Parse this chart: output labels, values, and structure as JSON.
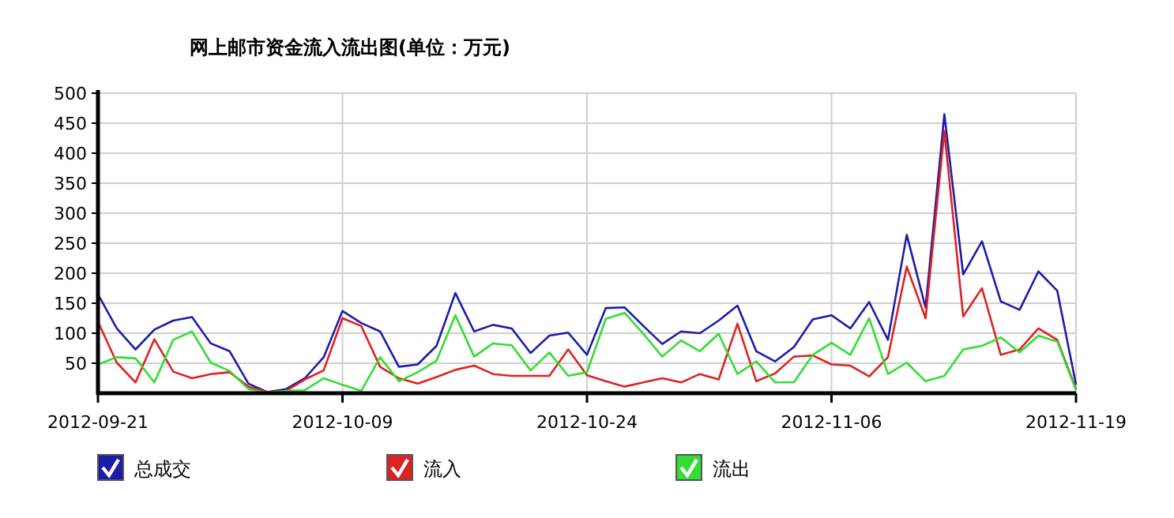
{
  "chart_data": {
    "type": "line",
    "title": "网上邮市资金流入流出图(单位：万元)",
    "categories": [
      "2012-09-21",
      null,
      null,
      null,
      null,
      null,
      null,
      null,
      null,
      null,
      null,
      null,
      null,
      "2012-10-09",
      null,
      null,
      null,
      null,
      null,
      null,
      null,
      null,
      null,
      null,
      null,
      null,
      "2012-10-24",
      null,
      null,
      null,
      null,
      null,
      null,
      null,
      null,
      null,
      null,
      null,
      null,
      "2012-11-06",
      null,
      null,
      null,
      null,
      null,
      null,
      null,
      null,
      null,
      null,
      null,
      null,
      "2012-11-19"
    ],
    "series": [
      {
        "name": "总成交",
        "color": "#1c1ca8",
        "values": [
          165,
          108,
          73,
          106,
          121,
          127,
          83,
          70,
          16,
          2,
          7,
          25,
          60,
          137,
          117,
          103,
          44,
          48,
          79,
          167,
          103,
          114,
          108,
          67,
          96,
          101,
          64,
          142,
          143,
          112,
          82,
          103,
          100,
          121,
          146,
          70,
          53,
          77,
          123,
          130,
          108,
          152,
          89,
          264,
          143,
          465,
          198,
          253,
          153,
          139,
          203,
          171,
          14
        ]
      },
      {
        "name": "流入",
        "color": "#dd2222",
        "values": [
          119,
          51,
          18,
          90,
          36,
          25,
          32,
          35,
          11,
          2,
          4,
          23,
          38,
          125,
          112,
          44,
          25,
          16,
          27,
          39,
          46,
          32,
          29,
          29,
          29,
          73,
          30,
          20,
          11,
          18,
          25,
          18,
          32,
          23,
          116,
          20,
          33,
          61,
          63,
          48,
          46,
          28,
          60,
          211,
          125,
          437,
          128,
          175,
          64,
          73,
          108,
          89,
          7
        ]
      },
      {
        "name": "流出",
        "color": "#33dd33",
        "values": [
          48,
          60,
          58,
          18,
          89,
          103,
          51,
          37,
          7,
          1,
          4,
          5,
          25,
          14,
          4,
          60,
          20,
          35,
          54,
          130,
          61,
          83,
          80,
          38,
          68,
          29,
          35,
          124,
          134,
          99,
          61,
          88,
          70,
          99,
          32,
          53,
          18,
          18,
          64,
          84,
          64,
          125,
          32,
          51,
          20,
          29,
          73,
          79,
          93,
          68,
          96,
          86,
          5
        ]
      }
    ],
    "ylim": [
      0,
      500
    ],
    "yticks": [
      50,
      100,
      150,
      200,
      250,
      300,
      350,
      400,
      450,
      500
    ],
    "grid": true,
    "legend": "bottom left"
  }
}
